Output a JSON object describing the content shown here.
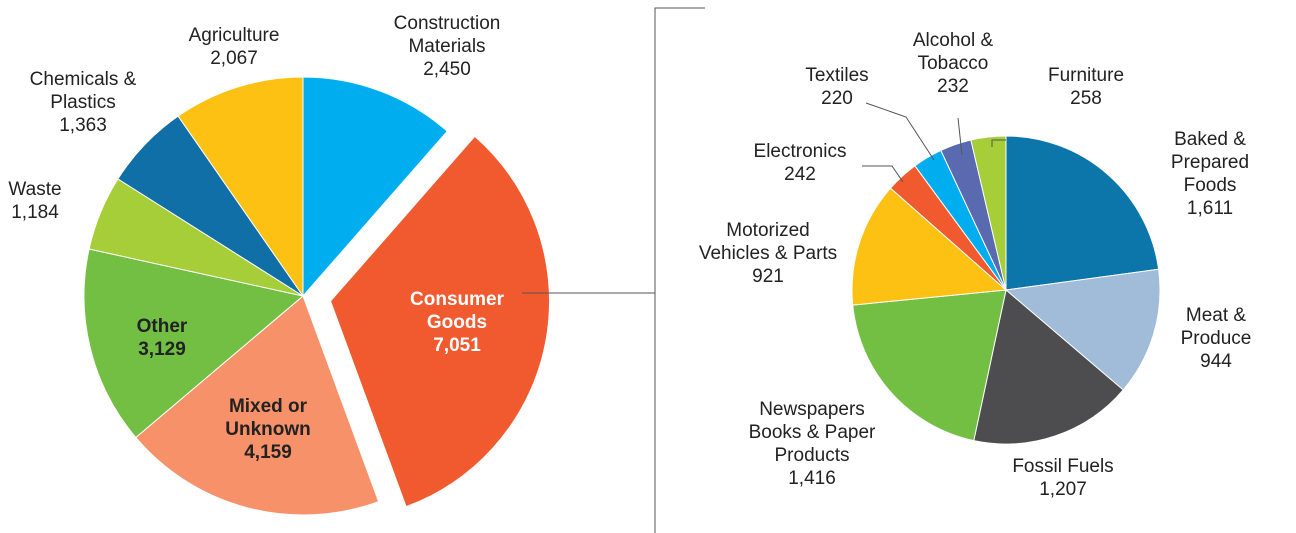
{
  "chart_data": [
    {
      "type": "pie",
      "categories": [
        "Construction\nMaterials",
        "Consumer\nGoods",
        "Mixed or\nUnknown",
        "Other",
        "Waste",
        "Chemicals &\nPlastics",
        "Agriculture"
      ],
      "values": [
        2450,
        7051,
        4159,
        3129,
        1184,
        1363,
        2067
      ],
      "value_labels": [
        "2,450",
        "7,051",
        "4,159",
        "3,129",
        "1,184",
        "1,363",
        "2,067"
      ],
      "colors": [
        "#00aeef",
        "#f15a2f",
        "#f7916a",
        "#72bf44",
        "#a6ce39",
        "#0f6fa6",
        "#fcc112"
      ],
      "explode": [
        false,
        true,
        false,
        false,
        false,
        false,
        false
      ]
    },
    {
      "type": "pie",
      "categories": [
        "Baked &\nPrepared Foods",
        "Meat &\nProduce",
        "Fossil Fuels",
        "Newspapers\nBooks & Paper\nProducts",
        "Motorized\nVehicles & Parts",
        "Electronics",
        "Textiles",
        "Alcohol &\nTobacco",
        "Furniture"
      ],
      "values": [
        1611,
        944,
        1207,
        1416,
        921,
        242,
        220,
        232,
        258
      ],
      "value_labels": [
        "1,611",
        "944",
        "1,207",
        "1,416",
        "921",
        "242",
        "220",
        "232",
        "258"
      ],
      "colors": [
        "#0c76aa",
        "#a0bcd9",
        "#4d4d4f",
        "#72bf44",
        "#fcc112",
        "#f15a2f",
        "#00aeef",
        "#5a6ab0",
        "#a6ce39"
      ],
      "explode": [
        false,
        false,
        false,
        false,
        false,
        false,
        false,
        false,
        false
      ]
    }
  ]
}
